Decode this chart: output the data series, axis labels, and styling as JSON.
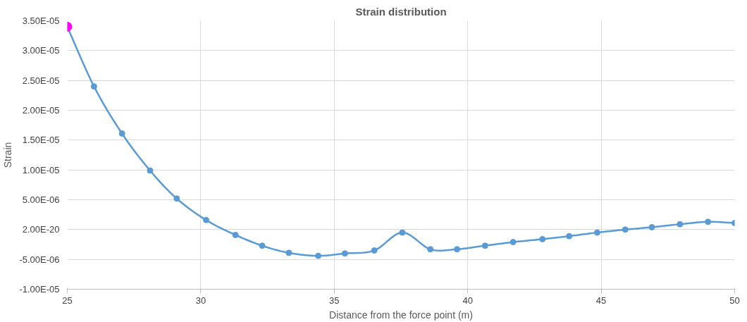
{
  "chart_data": {
    "type": "line",
    "title": "Strain distribution",
    "xlabel": "Distance from the force point (m)",
    "ylabel": "Strain",
    "xlim": [
      25,
      50
    ],
    "xticks": [
      25,
      30,
      35,
      40,
      45,
      50
    ],
    "ylim": [
      -1e-05,
      3.5e-05
    ],
    "yticks": [
      {
        "value": -1e-05,
        "label": "-1.00E-05"
      },
      {
        "value": -5e-06,
        "label": "-5.00E-06"
      },
      {
        "value": 0,
        "label": "2.00E-20"
      },
      {
        "value": 5e-06,
        "label": "5.00E-06"
      },
      {
        "value": 1e-05,
        "label": "1.00E-05"
      },
      {
        "value": 1.5e-05,
        "label": "1.50E-05"
      },
      {
        "value": 2e-05,
        "label": "2.00E-05"
      },
      {
        "value": 2.5e-05,
        "label": "2.50E-05"
      },
      {
        "value": 3e-05,
        "label": "3.00E-05"
      },
      {
        "value": 3.5e-05,
        "label": "3.50E-05"
      }
    ],
    "grid": true,
    "marker": "circle",
    "line_style": "solid",
    "series": [
      {
        "color": "#5b9bd5",
        "colors": [
          "#ff00ff",
          "#5b9bd5",
          "#5b9bd5",
          "#5b9bd5",
          "#5b9bd5",
          "#5b9bd5",
          "#5b9bd5",
          "#5b9bd5",
          "#5b9bd5",
          "#5b9bd5",
          "#5b9bd5",
          "#5b9bd5",
          "#5b9bd5",
          "#5b9bd5",
          "#5b9bd5",
          "#5b9bd5",
          "#5b9bd5",
          "#5b9bd5",
          "#5b9bd5",
          "#5b9bd5",
          "#5b9bd5",
          "#5b9bd5",
          "#5b9bd5",
          "#5b9bd5",
          "#5b9bd5"
        ],
        "x": [
          25.0,
          26.0,
          27.05,
          28.1,
          29.1,
          30.2,
          31.3,
          32.3,
          33.3,
          34.4,
          35.4,
          36.5,
          37.55,
          38.6,
          39.6,
          40.65,
          41.7,
          42.8,
          43.8,
          44.85,
          45.9,
          46.9,
          47.95,
          49.0,
          50.0
        ],
        "values": [
          3.4e-05,
          2.4e-05,
          1.61e-05,
          9.9e-06,
          5.2e-06,
          1.6e-06,
          -9e-07,
          -2.7e-06,
          -3.9e-06,
          -4.4e-06,
          -4e-06,
          -3.5e-06,
          -5e-07,
          -3.3e-06,
          -3.3e-06,
          -2.7e-06,
          -2.1e-06,
          -1.6e-06,
          -1.1e-06,
          -5e-07,
          0,
          4e-07,
          9e-07,
          1.3e-06,
          1.1e-06
        ]
      }
    ]
  }
}
